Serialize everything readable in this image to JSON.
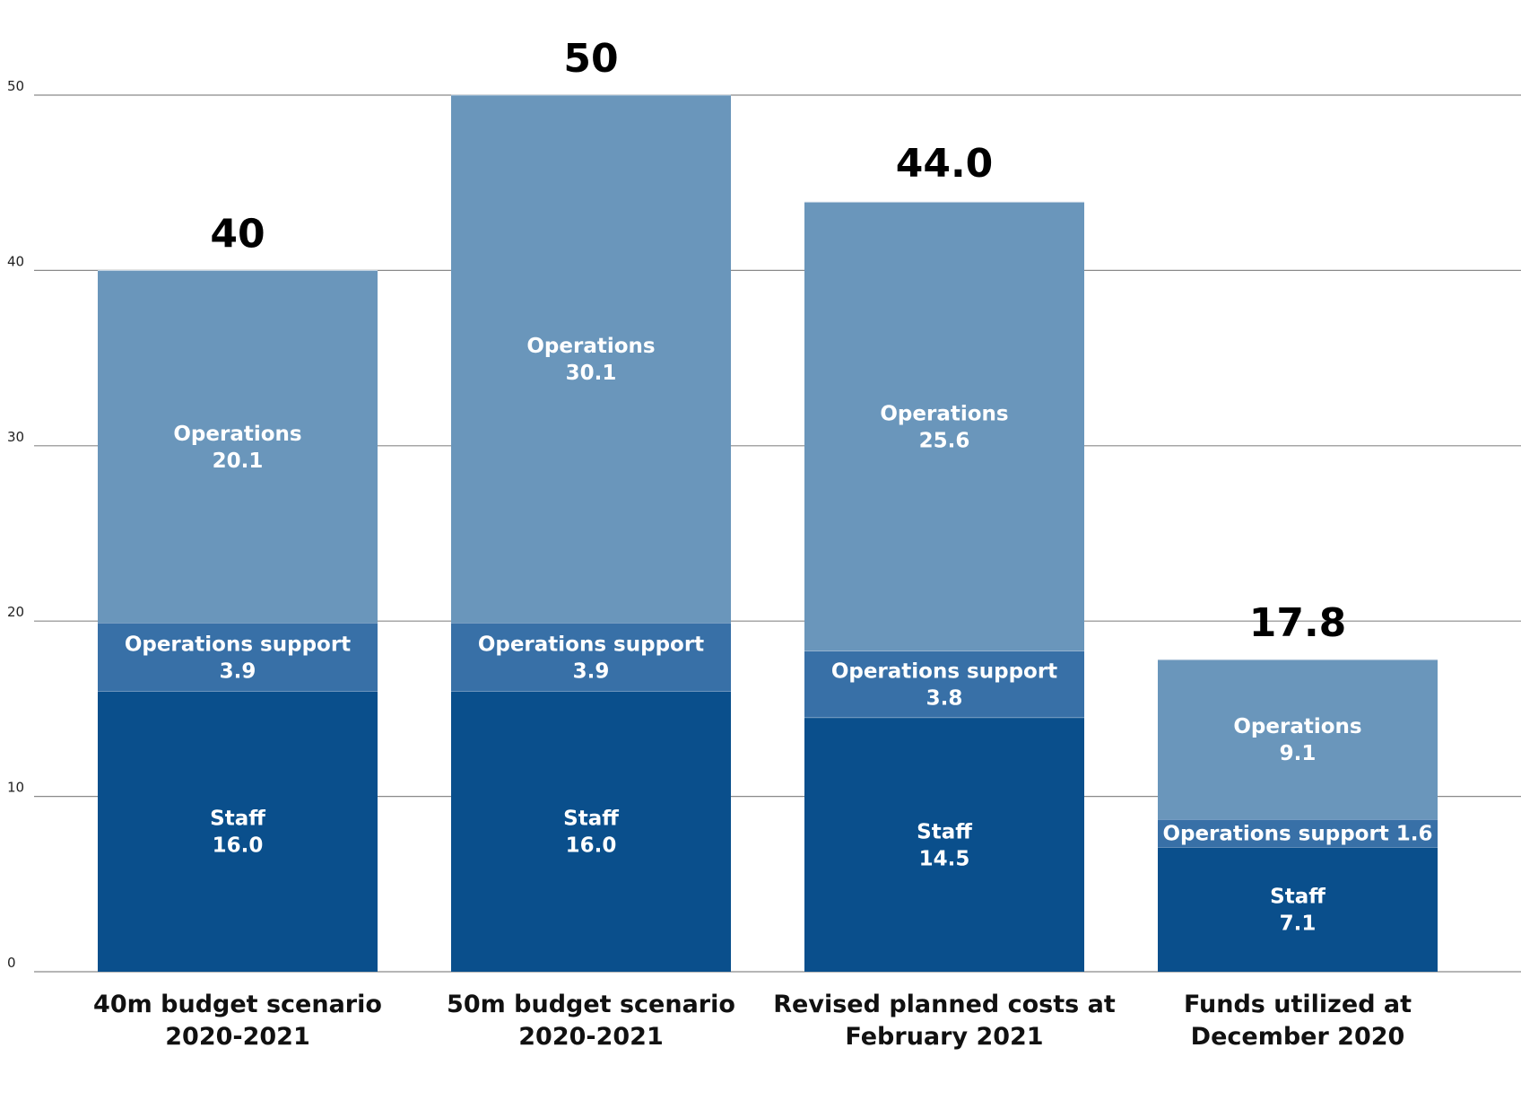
{
  "chart_data": {
    "type": "bar",
    "stacked": true,
    "categories": [
      [
        "40m budget scenario",
        "2020-2021"
      ],
      [
        "50m budget scenario",
        "2020-2021"
      ],
      [
        "Revised planned costs at",
        "February 2021"
      ],
      [
        "Funds utilized at",
        "December 2020"
      ]
    ],
    "totals": [
      "40",
      "50",
      "44.0",
      "17.8"
    ],
    "total_values": [
      40,
      50,
      44.0,
      17.8
    ],
    "series": [
      {
        "name": "Staff",
        "color": "#0a4f8c",
        "values": [
          16.0,
          16.0,
          14.5,
          7.1
        ],
        "labels": [
          [
            "Staff",
            "16.0"
          ],
          [
            "Staff",
            "16.0"
          ],
          [
            "Staff",
            "14.5"
          ],
          [
            "Staff",
            "7.1"
          ]
        ]
      },
      {
        "name": "Operations support",
        "color": "#3870a7",
        "values": [
          3.9,
          3.9,
          3.8,
          1.6
        ],
        "labels": [
          [
            "Operations support",
            "3.9"
          ],
          [
            "Operations support",
            "3.9"
          ],
          [
            "Operations support",
            "3.8"
          ],
          [
            "Operations support 1.6"
          ]
        ]
      },
      {
        "name": "Operations",
        "color": "#6a96bb",
        "values": [
          20.1,
          30.1,
          25.6,
          9.1
        ],
        "labels": [
          [
            "Operations",
            "20.1"
          ],
          [
            "Operations",
            "30.1"
          ],
          [
            "Operations",
            "25.6"
          ],
          [
            "Operations",
            "9.1"
          ]
        ]
      }
    ],
    "yticks": [
      "0",
      "10",
      "20",
      "30",
      "40",
      "50"
    ],
    "ylim": [
      0,
      50
    ],
    "grid": true,
    "legend": "none"
  }
}
